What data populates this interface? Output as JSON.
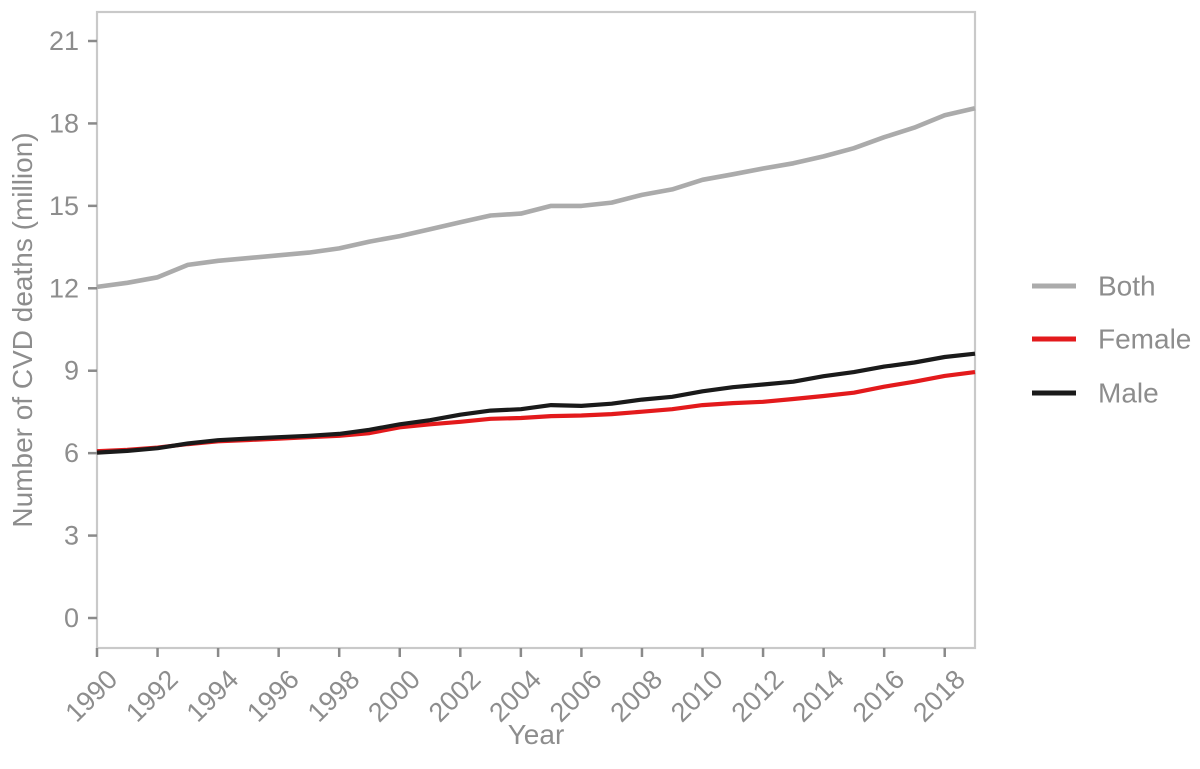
{
  "figure": {
    "background": "#ffffff"
  },
  "chart_data": {
    "type": "line",
    "title": "",
    "xlabel": "Year",
    "ylabel": "Number of CVD deaths (million)",
    "x": [
      1990,
      1991,
      1992,
      1993,
      1994,
      1995,
      1996,
      1997,
      1998,
      1999,
      2000,
      2001,
      2002,
      2003,
      2004,
      2005,
      2006,
      2007,
      2008,
      2009,
      2010,
      2011,
      2012,
      2013,
      2014,
      2015,
      2016,
      2017,
      2018,
      2019
    ],
    "series": [
      {
        "name": "Both",
        "color": "#ababab",
        "values": [
          12.05,
          12.2,
          12.4,
          12.85,
          13.0,
          13.1,
          13.2,
          13.3,
          13.45,
          13.7,
          13.9,
          14.15,
          14.4,
          14.65,
          14.72,
          15.0,
          15.0,
          15.12,
          15.4,
          15.6,
          15.95,
          16.15,
          16.36,
          16.55,
          16.8,
          17.1,
          17.5,
          17.85,
          18.3,
          18.55
        ]
      },
      {
        "name": "Female",
        "color": "#e31a1c",
        "values": [
          6.07,
          6.12,
          6.2,
          6.33,
          6.43,
          6.48,
          6.53,
          6.58,
          6.63,
          6.73,
          6.94,
          7.05,
          7.14,
          7.25,
          7.28,
          7.35,
          7.37,
          7.42,
          7.51,
          7.6,
          7.75,
          7.82,
          7.87,
          7.97,
          8.08,
          8.2,
          8.42,
          8.6,
          8.81,
          8.95
        ]
      },
      {
        "name": "Male",
        "color": "#1a1a1a",
        "values": [
          6.02,
          6.08,
          6.18,
          6.35,
          6.47,
          6.53,
          6.58,
          6.63,
          6.7,
          6.85,
          7.05,
          7.2,
          7.4,
          7.55,
          7.6,
          7.75,
          7.72,
          7.8,
          7.95,
          8.05,
          8.25,
          8.4,
          8.5,
          8.6,
          8.8,
          8.95,
          9.15,
          9.3,
          9.5,
          9.62
        ]
      }
    ],
    "xticks": [
      1990,
      1992,
      1994,
      1996,
      1998,
      2000,
      2002,
      2004,
      2006,
      2008,
      2010,
      2012,
      2014,
      2016,
      2018
    ],
    "yticks": [
      0,
      3,
      6,
      9,
      12,
      15,
      18,
      21
    ],
    "xlim": [
      1990,
      2019
    ],
    "ylim": [
      0,
      21
    ],
    "grid": false,
    "legend_position": "right",
    "axis_color": "#c9c9c9",
    "tick_color": "#8a8a8a",
    "text_color": "#8d8d8d"
  }
}
